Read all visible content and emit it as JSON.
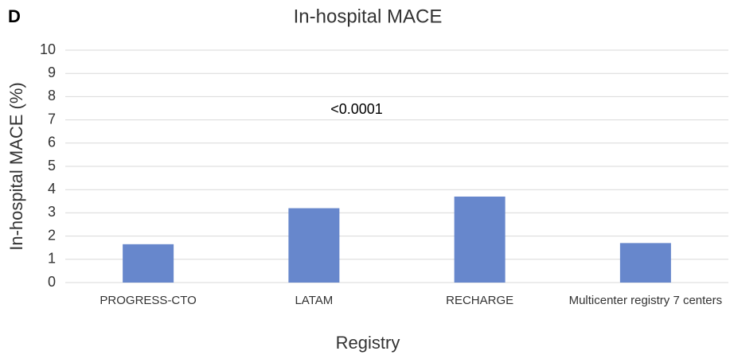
{
  "chart_data": {
    "type": "bar",
    "panel_label": "D",
    "title": "In-hospital MACE",
    "annotation": "<0.0001",
    "x_label": "Registry",
    "y_label": "In-hospital MACE (%)",
    "categories": [
      "PROGRESS-CTO",
      "LATAM",
      "RECHARGE",
      "Multicenter registry 7 centers"
    ],
    "values": [
      1.65,
      3.2,
      3.7,
      1.7
    ],
    "color": "#6787cc",
    "ylim": [
      0,
      10
    ],
    "yticks": [
      0,
      1,
      2,
      3,
      4,
      5,
      6,
      7,
      8,
      9,
      10
    ],
    "grid": true
  }
}
